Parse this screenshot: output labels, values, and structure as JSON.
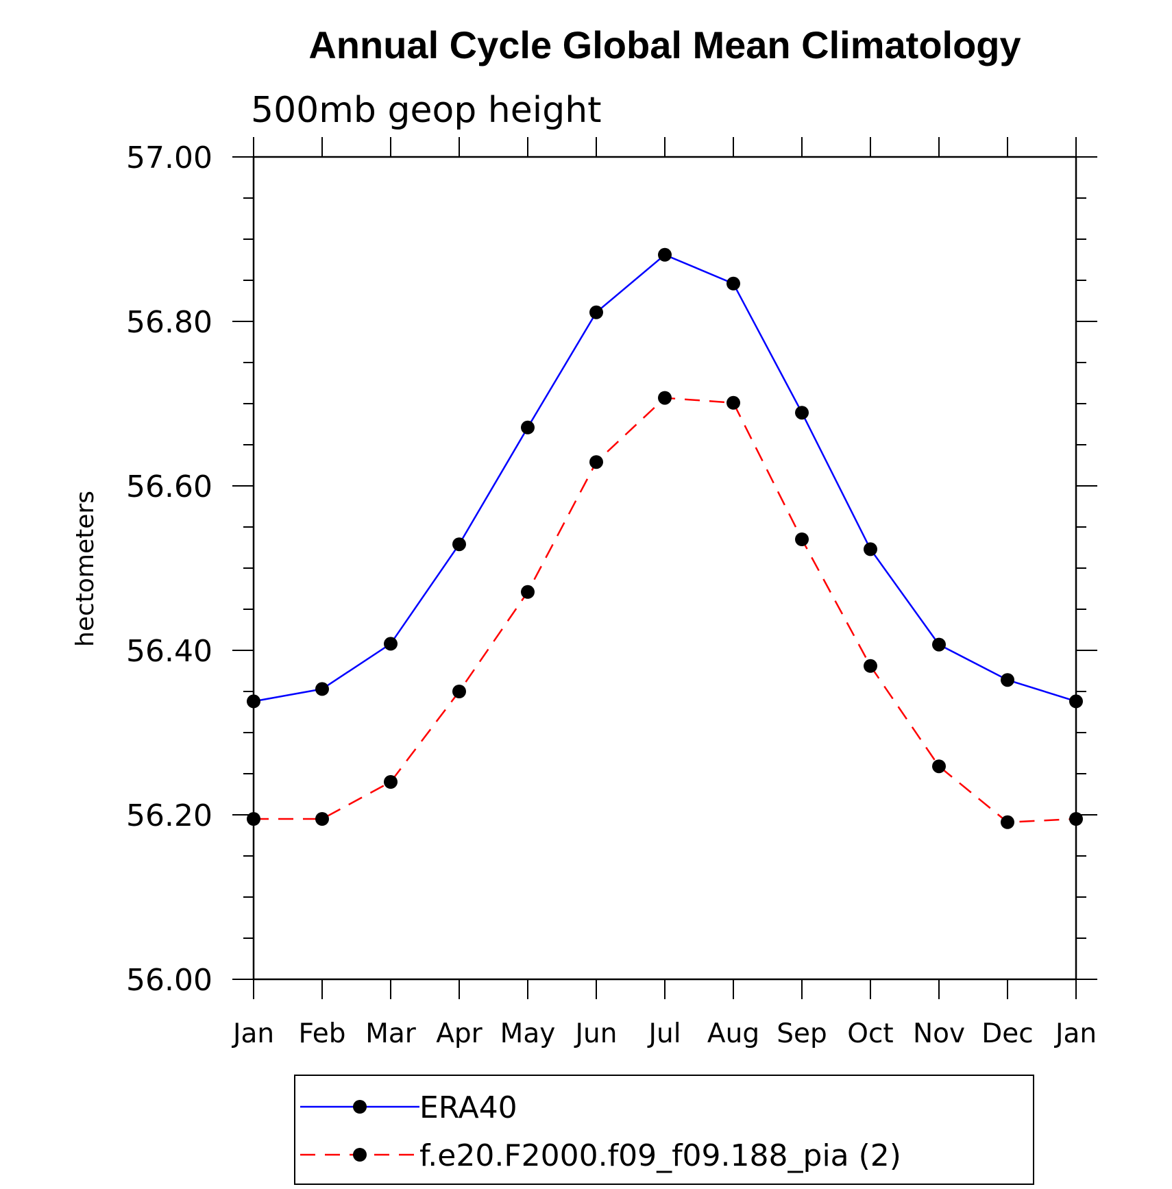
{
  "chart_data": {
    "type": "line",
    "title": "Annual Cycle Global Mean Climatology",
    "subtitle": "500mb geop height",
    "xlabel": "",
    "ylabel": "hectometers",
    "categories": [
      "Jan",
      "Feb",
      "Mar",
      "Apr",
      "May",
      "Jun",
      "Jul",
      "Aug",
      "Sep",
      "Oct",
      "Nov",
      "Dec",
      "Jan"
    ],
    "ylim": [
      56.0,
      57.0
    ],
    "yticks": [
      "56.00",
      "56.20",
      "56.40",
      "56.60",
      "56.80",
      "57.00"
    ],
    "grid": false,
    "legend_position": "bottom",
    "series": [
      {
        "name": "ERA40",
        "color": "#0000ff",
        "line_style": "solid",
        "marker": "filled-circle",
        "values": [
          56.338,
          56.353,
          56.408,
          56.529,
          56.671,
          56.811,
          56.881,
          56.846,
          56.689,
          56.523,
          56.407,
          56.364,
          56.338
        ]
      },
      {
        "name": "f.e20.F2000.f09_f09.188_pia (2)",
        "color": "#ff0000",
        "line_style": "dashed",
        "marker": "filled-circle",
        "values": [
          56.195,
          56.195,
          56.24,
          56.35,
          56.471,
          56.629,
          56.707,
          56.701,
          56.535,
          56.381,
          56.259,
          56.191,
          56.195
        ]
      }
    ]
  }
}
